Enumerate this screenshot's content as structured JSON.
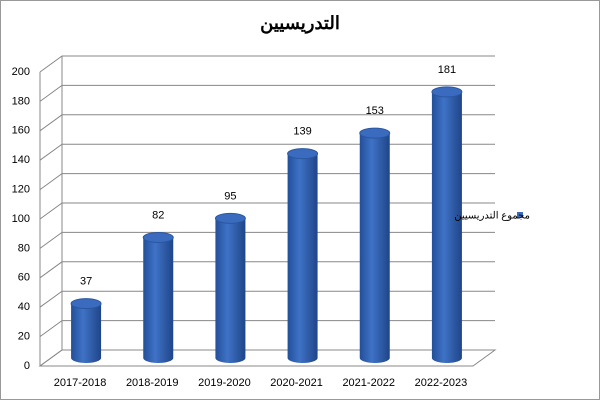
{
  "chart_data": {
    "type": "bar",
    "title": "التدريسيين",
    "categories": [
      "2017-2018",
      "2018-2019",
      "2019-2020",
      "2020-2021",
      "2021-2022",
      "2022-2023"
    ],
    "series": [
      {
        "name": "مجموع التدريسيين",
        "color": "#3a6bbf",
        "values": [
          37,
          82,
          95,
          139,
          153,
          181
        ]
      }
    ],
    "ylim": [
      0,
      200
    ],
    "yticks": [
      0,
      20,
      40,
      60,
      80,
      100,
      120,
      140,
      160,
      180,
      200
    ],
    "grid": true,
    "legend": "right"
  }
}
